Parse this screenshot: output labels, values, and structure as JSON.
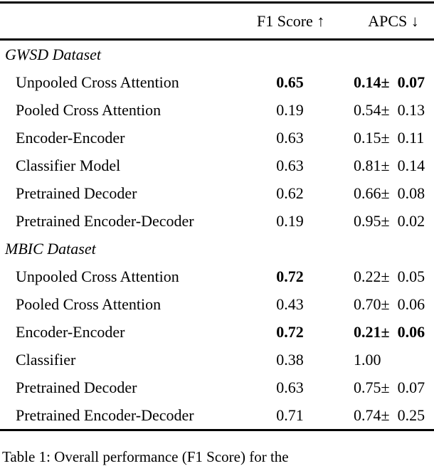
{
  "page": {
    "background_color": "#ffffff",
    "text_color": "#000000",
    "rule_color": "#000000"
  },
  "table": {
    "header": {
      "label": "",
      "f1": "F1 Score ↑",
      "apcs": "APCS ↓"
    },
    "sections": [
      {
        "title": "GWSD Dataset",
        "rows": [
          {
            "label": "Unpooled Cross Attention",
            "f1": "0.65",
            "apcs": "0.14± 0.07",
            "bold_f1": true,
            "bold_apcs": true
          },
          {
            "label": "Pooled Cross Attention",
            "f1": "0.19",
            "apcs": "0.54± 0.13",
            "bold_f1": false,
            "bold_apcs": false
          },
          {
            "label": "Encoder-Encoder",
            "f1": "0.63",
            "apcs": "0.15± 0.11",
            "bold_f1": false,
            "bold_apcs": false
          },
          {
            "label": "Classifier Model",
            "f1": "0.63",
            "apcs": "0.81± 0.14",
            "bold_f1": false,
            "bold_apcs": false
          },
          {
            "label": "Pretrained Decoder",
            "f1": "0.62",
            "apcs": "0.66± 0.08",
            "bold_f1": false,
            "bold_apcs": false
          },
          {
            "label": "Pretrained Encoder-Decoder",
            "f1": "0.19",
            "apcs": "0.95± 0.02",
            "bold_f1": false,
            "bold_apcs": false
          }
        ]
      },
      {
        "title": "MBIC Dataset",
        "rows": [
          {
            "label": "Unpooled Cross Attention",
            "f1": "0.72",
            "apcs": "0.22± 0.05",
            "bold_f1": true,
            "bold_apcs": false
          },
          {
            "label": "Pooled Cross Attention",
            "f1": "0.43",
            "apcs": "0.70± 0.06",
            "bold_f1": false,
            "bold_apcs": false
          },
          {
            "label": "Encoder-Encoder",
            "f1": "0.72",
            "apcs": "0.21± 0.06",
            "bold_f1": true,
            "bold_apcs": true
          },
          {
            "label": "Classifier",
            "f1": "0.38",
            "apcs": "1.00",
            "bold_f1": false,
            "bold_apcs": false
          },
          {
            "label": "Pretrained Decoder",
            "f1": "0.63",
            "apcs": "0.75± 0.07",
            "bold_f1": false,
            "bold_apcs": false
          },
          {
            "label": "Pretrained Encoder-Decoder",
            "f1": "0.71",
            "apcs": "0.74± 0.25",
            "bold_f1": false,
            "bold_apcs": false
          }
        ]
      }
    ]
  },
  "caption": "Table 1: Overall performance (F1 Score) for the"
}
